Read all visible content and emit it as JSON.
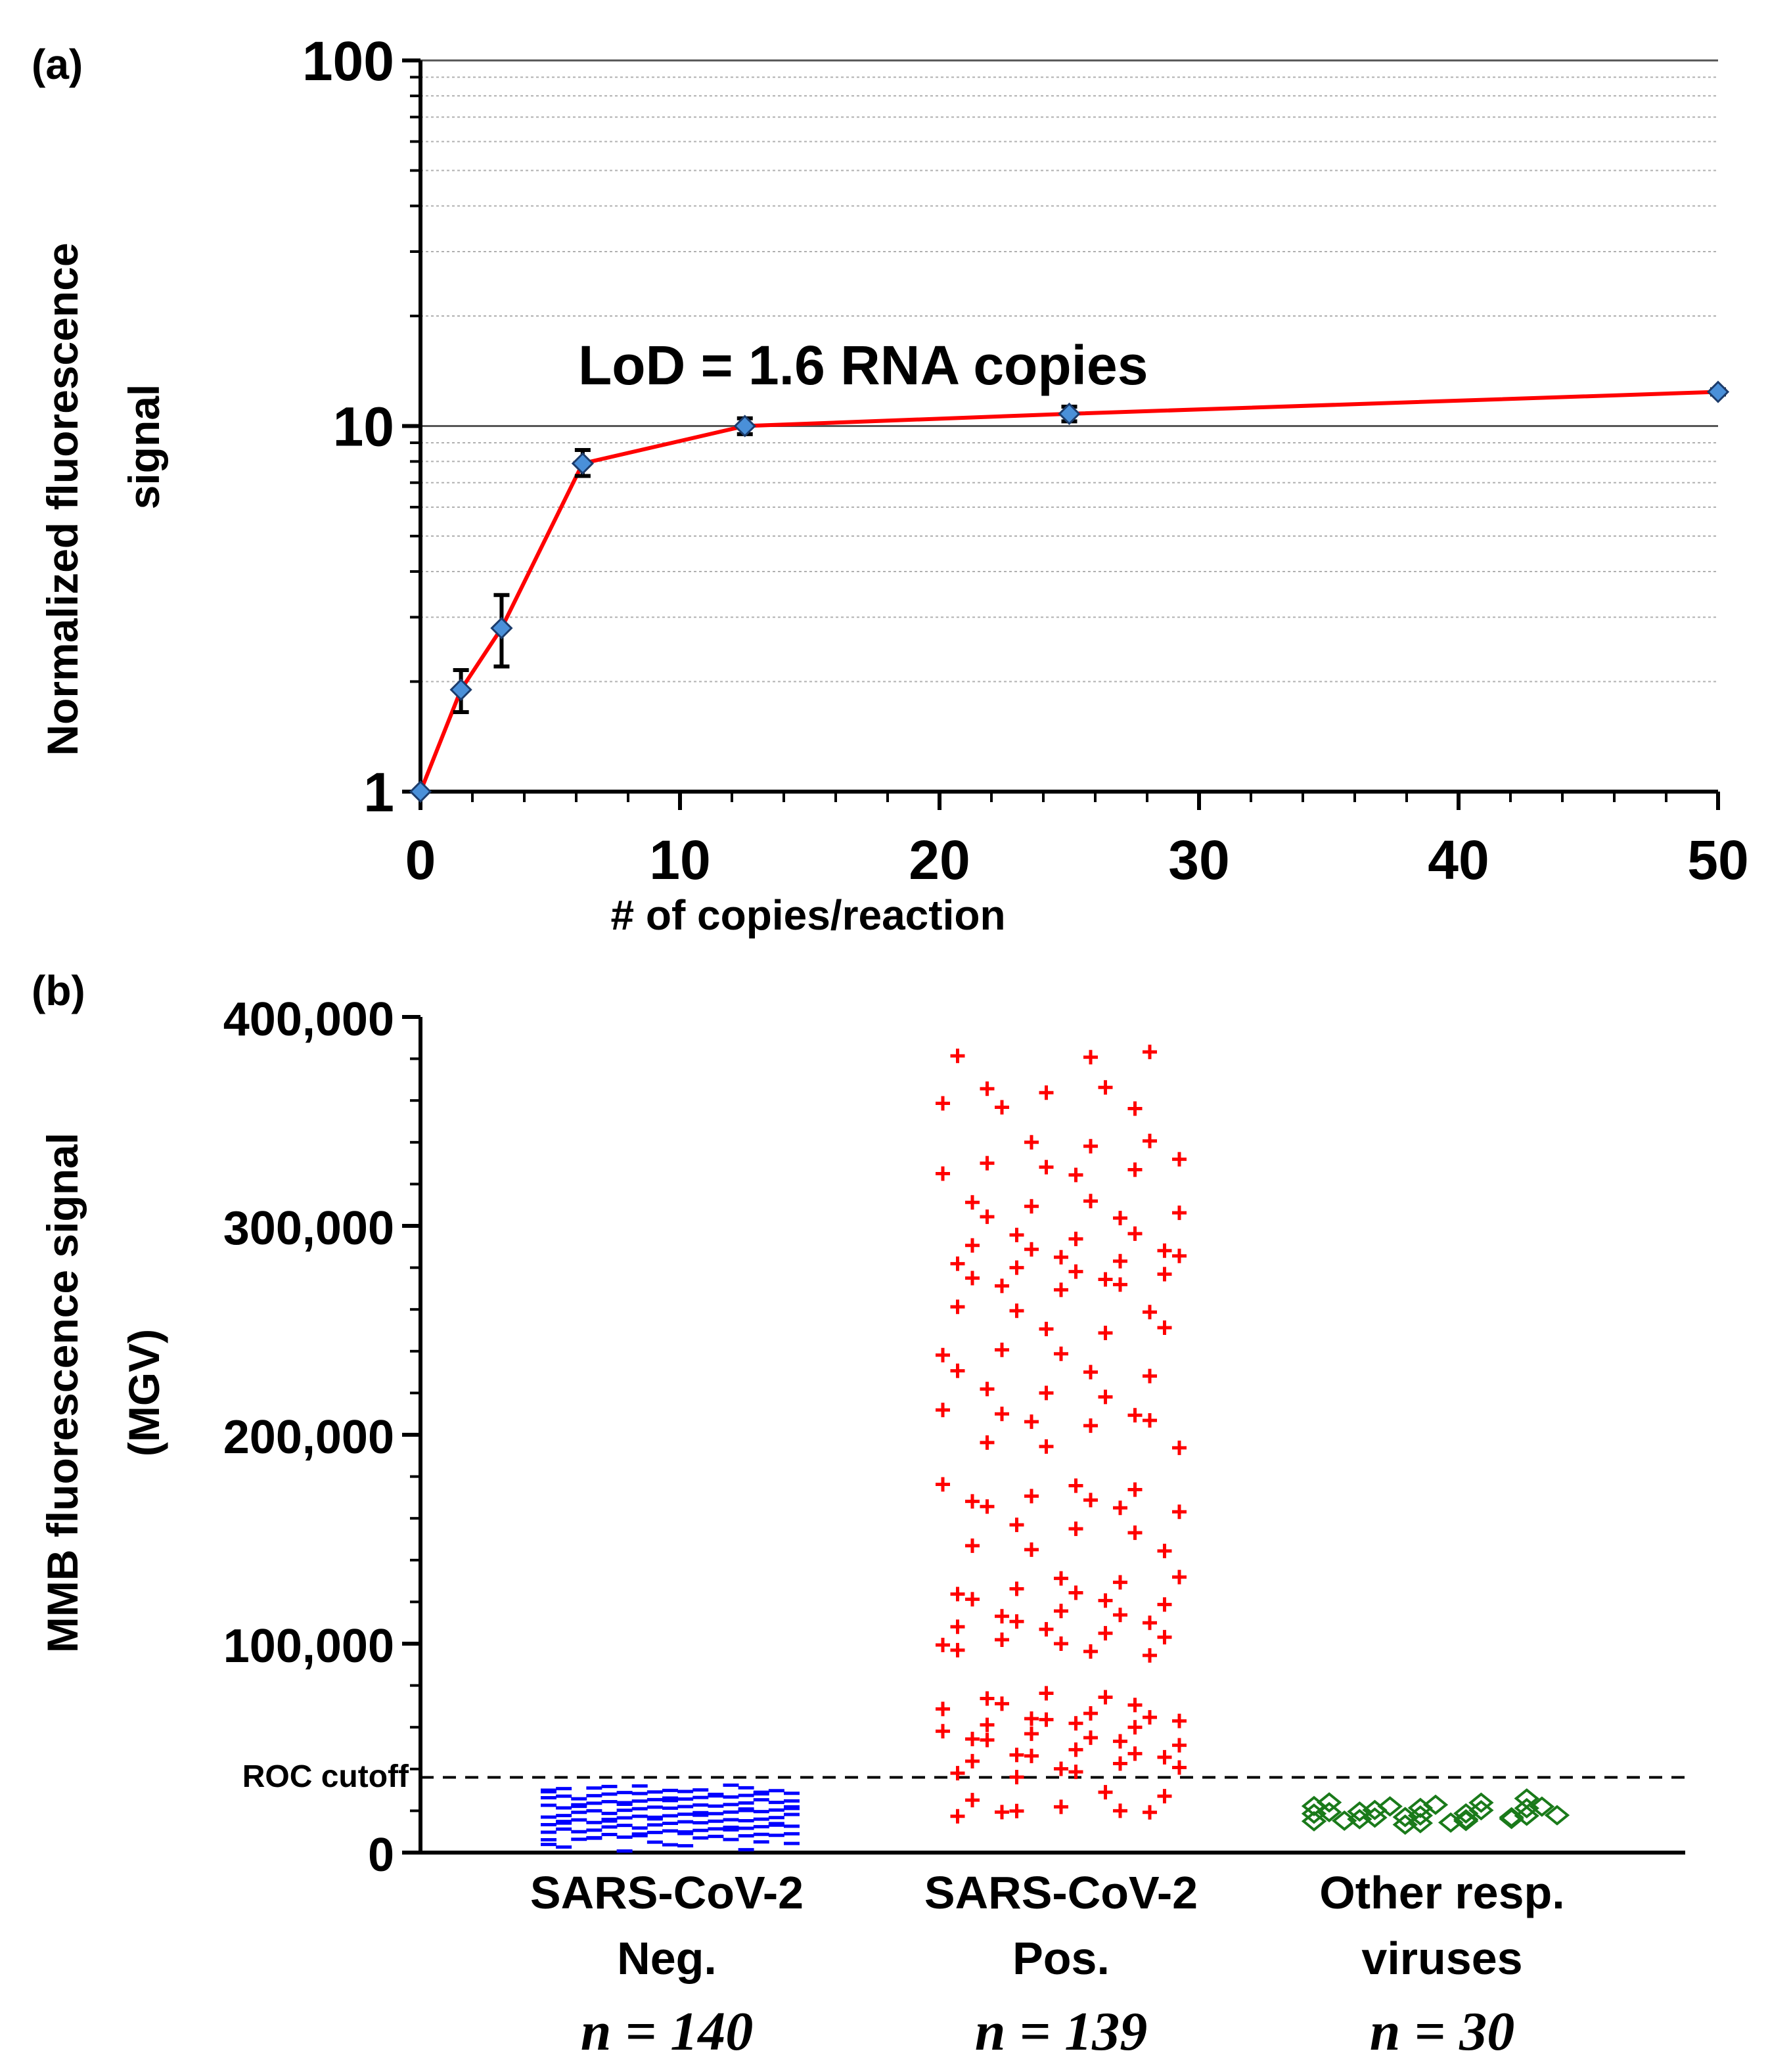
{
  "chart_data": [
    {
      "panel_label": "(a)",
      "type": "line",
      "title": "",
      "xlabel": "# of copies/reaction",
      "ylabel_lines": [
        "Normalized  fluorescence",
        "signal"
      ],
      "yscale": "log",
      "xlim": [
        0,
        50
      ],
      "ylim": [
        1,
        100
      ],
      "x_ticks": [
        "0",
        "10",
        "20",
        "30",
        "40",
        "50"
      ],
      "y_ticks": [
        "1",
        "10",
        "100"
      ],
      "annotation": "LoD = 1.6 RNA copies",
      "series": [
        {
          "name": "Normalized signal",
          "color": "#ff0000",
          "marker_color": "#4a90d9",
          "x": [
            0,
            1.56,
            3.125,
            6.25,
            12.5,
            25,
            50
          ],
          "y": [
            1.0,
            1.9,
            2.8,
            7.9,
            10.0,
            10.8,
            12.4
          ],
          "err_low": [
            1.0,
            1.65,
            2.2,
            7.3,
            9.5,
            10.3,
            12.2
          ],
          "err_high": [
            1.0,
            2.15,
            3.45,
            8.6,
            10.5,
            11.3,
            12.6
          ]
        }
      ]
    },
    {
      "panel_label": "(b)",
      "type": "scatter",
      "title": "",
      "xlabel": "",
      "ylabel_lines": [
        "MMB fluorescence signal",
        "(MGV)"
      ],
      "ylim": [
        0,
        400000
      ],
      "y_ticks": [
        "0",
        "100,000",
        "200,000",
        "300,000",
        "400,000"
      ],
      "cutoff": {
        "label": "ROC cutoff",
        "value": 36000
      },
      "groups": [
        {
          "name_lines": [
            "SARS-CoV-2",
            "Neg."
          ],
          "n_label": "n = 140",
          "color": "#0000ff",
          "marker": "minus",
          "values": [
            2000,
            5000,
            7000,
            8000,
            9000,
            10000,
            11000,
            12000,
            13000,
            14000,
            15000,
            16000,
            17000,
            18000,
            19000,
            20000,
            21000,
            22000,
            23000,
            24000,
            25000,
            26000,
            27000,
            28000,
            29000,
            30000,
            31000
          ]
        },
        {
          "name_lines": [
            "SARS-CoV-2",
            "Pos."
          ],
          "n_label": "n = 139",
          "color": "#ff0000",
          "marker": "plus",
          "values": [
            18000,
            20000,
            27000,
            38000,
            42000,
            45000,
            48000,
            52000,
            55000,
            60000,
            63000,
            66000,
            70000,
            75000,
            95000,
            100000,
            105000,
            110000,
            115000,
            120000,
            125000,
            130000,
            145000,
            155000,
            165000,
            170000,
            175000,
            195000,
            205000,
            210000,
            220000,
            230000,
            240000,
            250000,
            260000,
            270000,
            275000,
            280000,
            285000,
            290000,
            295000,
            305000,
            310000,
            325000,
            330000,
            340000,
            358000,
            365000,
            382000
          ]
        },
        {
          "name_lines": [
            "Other resp.",
            "viruses"
          ],
          "n_label": "n = 30",
          "color": "#1a7a1a",
          "marker": "diamond",
          "values": [
            14000,
            15000,
            16000,
            17000,
            18000,
            19000,
            20000,
            21000,
            22000,
            24000
          ]
        }
      ]
    }
  ]
}
